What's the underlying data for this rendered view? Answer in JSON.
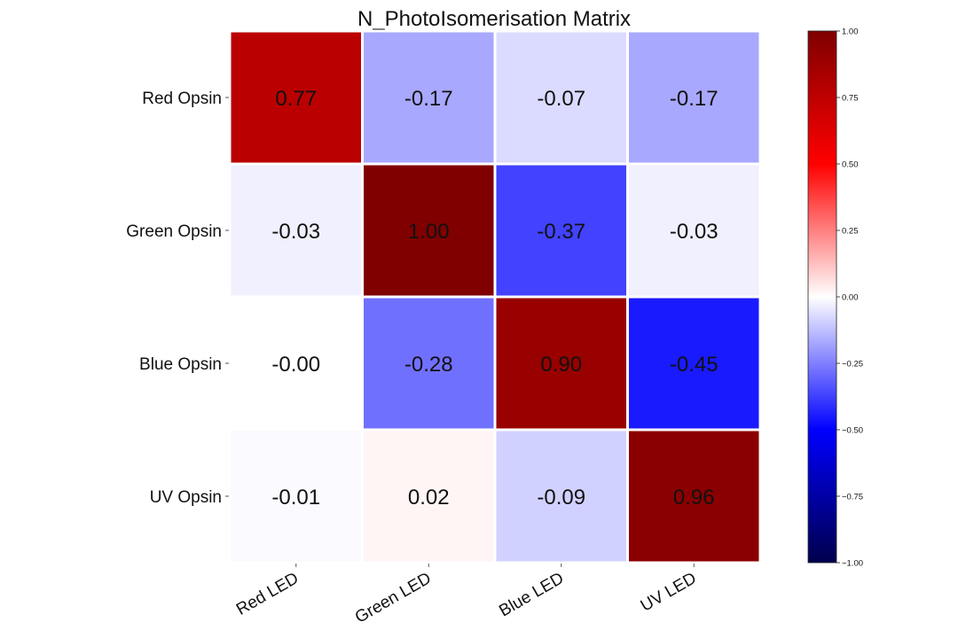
{
  "chart_data": {
    "type": "heatmap",
    "title": "N_PhotoIsomerisation Matrix",
    "x_categories": [
      "Red LED",
      "Green LED",
      "Blue LED",
      "UV LED"
    ],
    "y_categories": [
      "Red Opsin",
      "Green Opsin",
      "Blue Opsin",
      "UV Opsin"
    ],
    "values": [
      [
        0.77,
        -0.17,
        -0.07,
        -0.17
      ],
      [
        -0.03,
        1.0,
        -0.37,
        -0.03
      ],
      [
        -0.0,
        -0.28,
        0.9,
        -0.45
      ],
      [
        -0.01,
        0.02,
        -0.09,
        0.96
      ]
    ],
    "value_labels": [
      [
        "0.77",
        "-0.17",
        "-0.07",
        "-0.17"
      ],
      [
        "-0.03",
        "1.00",
        "-0.37",
        "-0.03"
      ],
      [
        "-0.00",
        "-0.28",
        "0.90",
        "-0.45"
      ],
      [
        "-0.01",
        "0.02",
        "-0.09",
        "0.96"
      ]
    ],
    "colormap": "seismic",
    "vmin": -1.0,
    "vmax": 1.0,
    "colorbar_ticks": [
      1.0,
      0.75,
      0.5,
      0.25,
      0.0,
      -0.25,
      -0.5,
      -0.75,
      -1.0
    ],
    "colorbar_tick_labels": [
      "1.00",
      "0.75",
      "0.50",
      "0.25",
      "0.00",
      "−0.25",
      "−0.50",
      "−0.75",
      "−1.00"
    ],
    "colorbar_colors": [
      "#00004c",
      "#0000ff",
      "#ffffff",
      "#ff0000",
      "#7f0000"
    ],
    "cell_border_color": "#ffffff",
    "grid": false,
    "legend": "colorbar-right"
  }
}
